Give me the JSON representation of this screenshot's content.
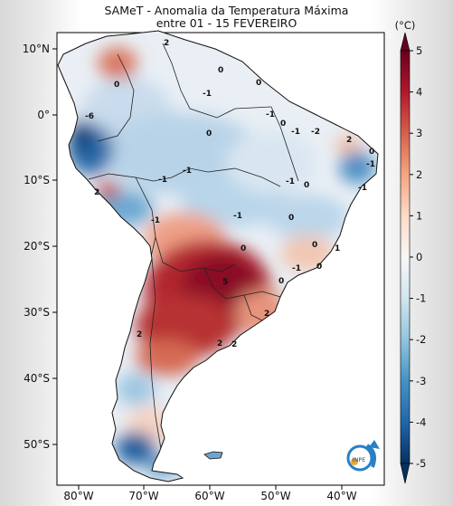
{
  "figure": {
    "title_line1": "SAMeT - Anomalia da Temperatura Máxima",
    "title_line2": "entre 01 - 15 FEVEREIRO",
    "logo_text": "INPE"
  },
  "map": {
    "lat_ticks": [
      "10°N",
      "0°",
      "10°S",
      "20°S",
      "30°S",
      "40°S",
      "50°S"
    ],
    "lon_ticks": [
      "80°W",
      "70°W",
      "60°W",
      "50°W",
      "40°W"
    ],
    "contour_labels": [
      "2",
      "0",
      "-1",
      "0",
      "0",
      "-6",
      "-1",
      "0",
      "-1",
      "-2",
      "2",
      "0",
      "-1",
      "-1",
      "-1",
      "0",
      "-1",
      "2",
      "0",
      "-1",
      "-1",
      "0",
      "-1",
      "0",
      "0",
      "1",
      "0",
      "-1",
      "5",
      "2",
      "2",
      "2",
      "2",
      "0"
    ]
  },
  "colorbar": {
    "unit": "(°C)",
    "ticks": [
      "5",
      "4",
      "3",
      "2",
      "1",
      "0",
      "-1",
      "-2",
      "-3",
      "-4",
      "-5"
    ],
    "min": -5,
    "max": 5,
    "colors": [
      "#053061",
      "#2166ac",
      "#4393c3",
      "#92c5de",
      "#d1e5f0",
      "#f7f7f7",
      "#fddbc7",
      "#f4a582",
      "#d6604d",
      "#b2182b",
      "#67001f"
    ]
  }
}
